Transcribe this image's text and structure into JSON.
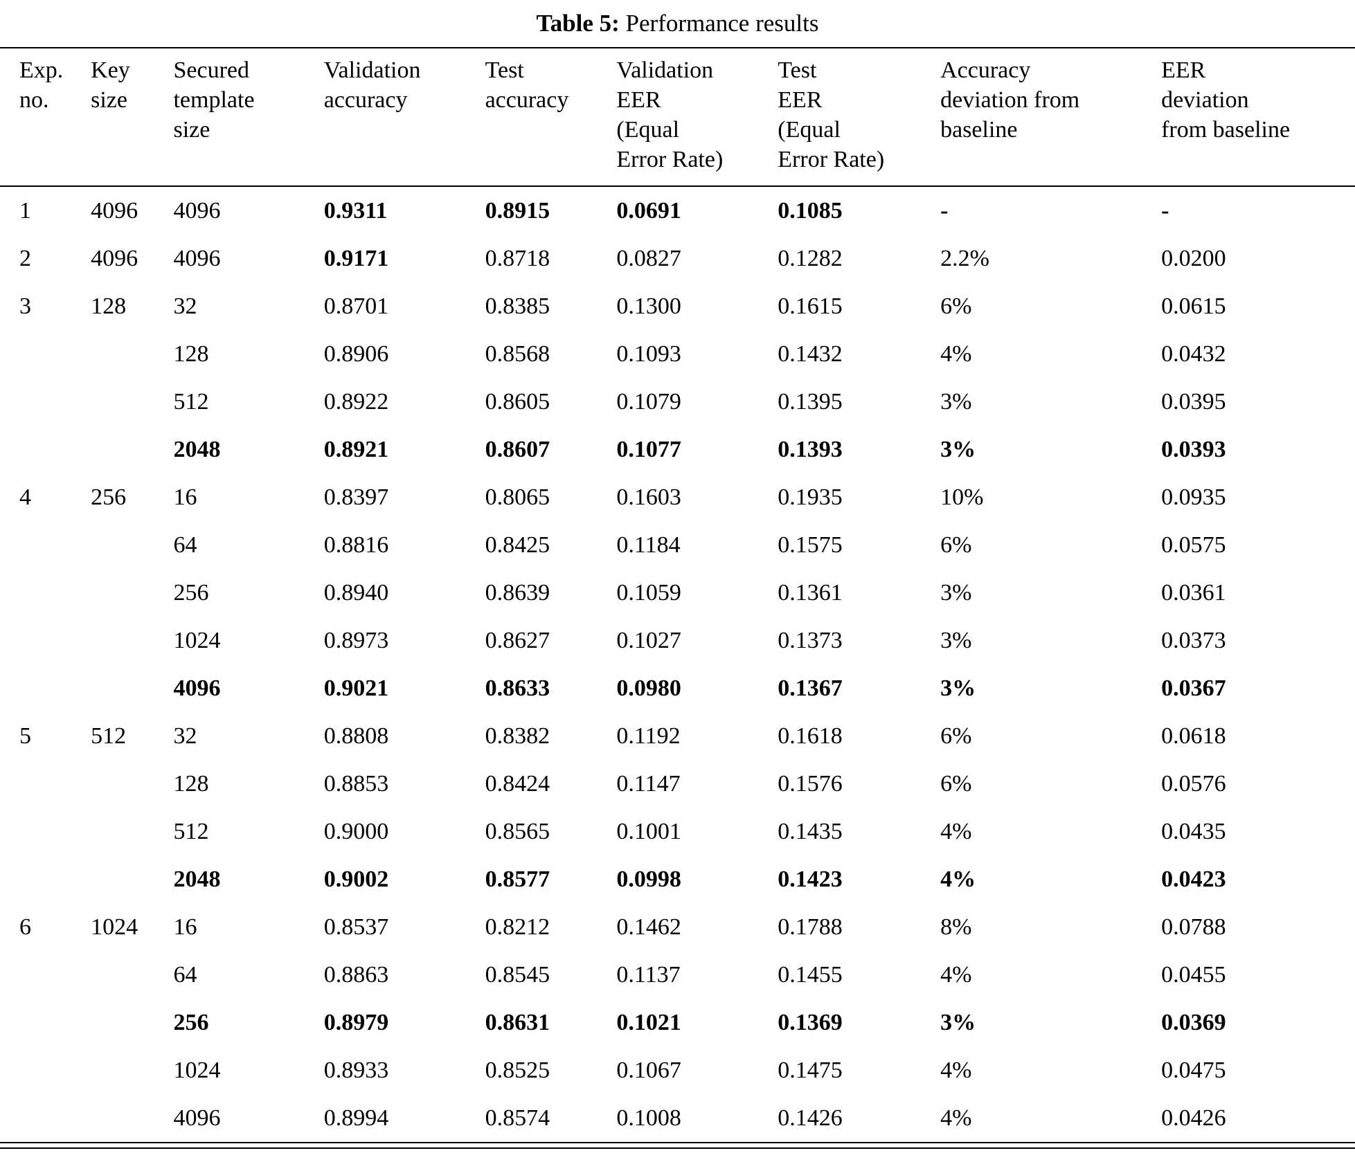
{
  "caption": {
    "label": "Table 5:",
    "text": "Performance results"
  },
  "table": {
    "columns": [
      {
        "lines": [
          "Exp.",
          "no."
        ]
      },
      {
        "lines": [
          "Key",
          "size"
        ]
      },
      {
        "lines": [
          "Secured",
          "template",
          "size"
        ]
      },
      {
        "lines": [
          "Validation",
          "accuracy"
        ]
      },
      {
        "lines": [
          "Test",
          "accuracy"
        ]
      },
      {
        "lines": [
          "Validation",
          "EER",
          "(Equal",
          "Error Rate)"
        ]
      },
      {
        "lines": [
          "Test",
          "EER",
          "(Equal",
          "Error Rate)"
        ]
      },
      {
        "lines": [
          "Accuracy",
          "deviation from",
          "baseline"
        ]
      },
      {
        "lines": [
          "EER",
          "deviation",
          "from baseline"
        ]
      }
    ],
    "rows": [
      {
        "cells": [
          "1",
          "4096",
          "4096",
          "0.9311",
          "0.8915",
          "0.0691",
          "0.1085",
          "-",
          "-"
        ],
        "bold": [
          3,
          4,
          5,
          6,
          7,
          8
        ]
      },
      {
        "cells": [
          "2",
          "4096",
          "4096",
          "0.9171",
          "0.8718",
          "0.0827",
          "0.1282",
          "2.2%",
          "0.0200"
        ],
        "bold": [
          3
        ]
      },
      {
        "cells": [
          "3",
          "128",
          "32",
          "0.8701",
          "0.8385",
          "0.1300",
          "0.1615",
          "6%",
          "0.0615"
        ],
        "bold": []
      },
      {
        "cells": [
          "",
          "",
          "128",
          "0.8906",
          "0.8568",
          "0.1093",
          "0.1432",
          "4%",
          "0.0432"
        ],
        "bold": []
      },
      {
        "cells": [
          "",
          "",
          "512",
          "0.8922",
          "0.8605",
          "0.1079",
          "0.1395",
          "3%",
          "0.0395"
        ],
        "bold": []
      },
      {
        "cells": [
          "",
          "",
          "2048",
          "0.8921",
          "0.8607",
          "0.1077",
          "0.1393",
          "3%",
          "0.0393"
        ],
        "bold": [
          2,
          3,
          4,
          5,
          6,
          7,
          8
        ]
      },
      {
        "cells": [
          "4",
          "256",
          "16",
          "0.8397",
          "0.8065",
          "0.1603",
          "0.1935",
          "10%",
          "0.0935"
        ],
        "bold": []
      },
      {
        "cells": [
          "",
          "",
          "64",
          "0.8816",
          "0.8425",
          "0.1184",
          "0.1575",
          "6%",
          "0.0575"
        ],
        "bold": []
      },
      {
        "cells": [
          "",
          "",
          "256",
          "0.8940",
          "0.8639",
          "0.1059",
          "0.1361",
          "3%",
          "0.0361"
        ],
        "bold": []
      },
      {
        "cells": [
          "",
          "",
          "1024",
          "0.8973",
          "0.8627",
          "0.1027",
          "0.1373",
          "3%",
          "0.0373"
        ],
        "bold": []
      },
      {
        "cells": [
          "",
          "",
          "4096",
          "0.9021",
          "0.8633",
          "0.0980",
          "0.1367",
          "3%",
          "0.0367"
        ],
        "bold": [
          2,
          3,
          4,
          5,
          6,
          7,
          8
        ]
      },
      {
        "cells": [
          "5",
          "512",
          "32",
          "0.8808",
          "0.8382",
          "0.1192",
          "0.1618",
          "6%",
          "0.0618"
        ],
        "bold": []
      },
      {
        "cells": [
          "",
          "",
          "128",
          "0.8853",
          "0.8424",
          "0.1147",
          "0.1576",
          "6%",
          "0.0576"
        ],
        "bold": []
      },
      {
        "cells": [
          "",
          "",
          "512",
          "0.9000",
          "0.8565",
          "0.1001",
          "0.1435",
          "4%",
          "0.0435"
        ],
        "bold": []
      },
      {
        "cells": [
          "",
          "",
          "2048",
          "0.9002",
          "0.8577",
          "0.0998",
          "0.1423",
          "4%",
          "0.0423"
        ],
        "bold": [
          2,
          3,
          4,
          5,
          6,
          7,
          8
        ]
      },
      {
        "cells": [
          "6",
          "1024",
          "16",
          "0.8537",
          "0.8212",
          "0.1462",
          "0.1788",
          "8%",
          "0.0788"
        ],
        "bold": []
      },
      {
        "cells": [
          "",
          "",
          "64",
          "0.8863",
          "0.8545",
          "0.1137",
          "0.1455",
          "4%",
          "0.0455"
        ],
        "bold": []
      },
      {
        "cells": [
          "",
          "",
          "256",
          "0.8979",
          "0.8631",
          "0.1021",
          "0.1369",
          "3%",
          "0.0369"
        ],
        "bold": [
          2,
          3,
          4,
          5,
          6,
          7,
          8
        ]
      },
      {
        "cells": [
          "",
          "",
          "1024",
          "0.8933",
          "0.8525",
          "0.1067",
          "0.1475",
          "4%",
          "0.0475"
        ],
        "bold": []
      },
      {
        "cells": [
          "",
          "",
          "4096",
          "0.8994",
          "0.8574",
          "0.1008",
          "0.1426",
          "4%",
          "0.0426"
        ],
        "bold": []
      }
    ]
  }
}
